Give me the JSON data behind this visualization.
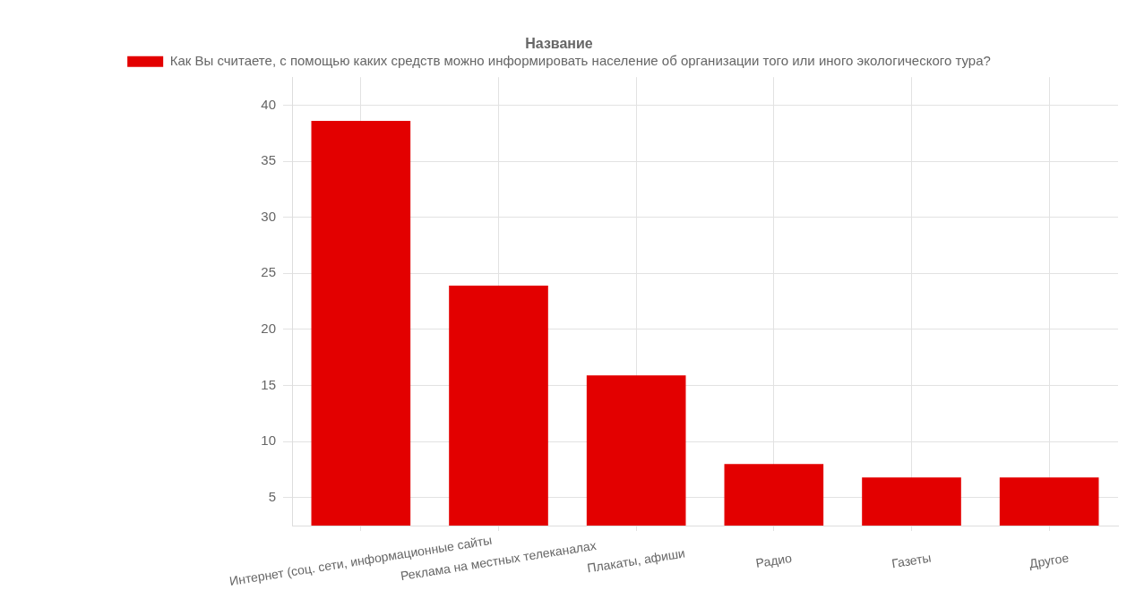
{
  "chart_data": {
    "type": "bar",
    "title": "Название",
    "categories": [
      "Интернет (соц. сети, информационные сайты",
      "Реклама на местных телеканалах",
      "Плакаты, афиши",
      "Радио",
      "Газеты",
      "Другое"
    ],
    "series": [
      {
        "name": "Как Вы считаете, с помощью каких средств можно информировать население об организации того или иного экологического тура?",
        "color": "#e30000",
        "values": [
          38.6,
          23.9,
          15.9,
          8,
          6.8,
          6.8
        ]
      }
    ],
    "ylim": [
      2.5,
      42.5
    ],
    "yticks": [
      5,
      10,
      15,
      20,
      25,
      30,
      35,
      40
    ],
    "grid": true,
    "legend": "top"
  }
}
